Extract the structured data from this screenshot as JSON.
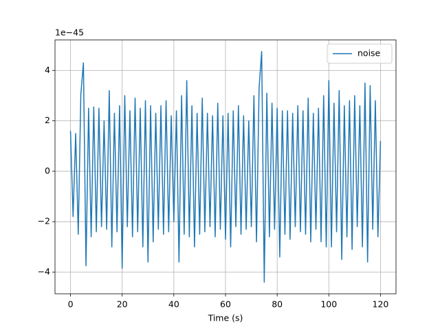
{
  "chart_data": {
    "type": "line",
    "xlabel": "Time (s)",
    "offset_text": "1e−45",
    "x": [
      0,
      1,
      2,
      3,
      4,
      5,
      6,
      7,
      8,
      9,
      10,
      11,
      12,
      13,
      14,
      15,
      16,
      17,
      18,
      19,
      20,
      21,
      22,
      23,
      24,
      25,
      26,
      27,
      28,
      29,
      30,
      31,
      32,
      33,
      34,
      35,
      36,
      37,
      38,
      39,
      40,
      41,
      42,
      43,
      44,
      45,
      46,
      47,
      48,
      49,
      50,
      51,
      52,
      53,
      54,
      55,
      56,
      57,
      58,
      59,
      60,
      61,
      62,
      63,
      64,
      65,
      66,
      67,
      68,
      69,
      70,
      71,
      72,
      73,
      74,
      75,
      76,
      77,
      78,
      79,
      80,
      81,
      82,
      83,
      84,
      85,
      86,
      87,
      88,
      89,
      90,
      91,
      92,
      93,
      94,
      95,
      96,
      97,
      98,
      99,
      100,
      101,
      102,
      103,
      104,
      105,
      106,
      107,
      108,
      109,
      110,
      111,
      112,
      113,
      114,
      115,
      116,
      117,
      118,
      119,
      120
    ],
    "series": [
      {
        "name": "noise",
        "color": "#1f77b4",
        "values": [
          1.6,
          -1.8,
          1.5,
          -2.5,
          3.05,
          4.3,
          -3.75,
          2.5,
          -2.6,
          2.55,
          -2.4,
          2.5,
          -2.2,
          2.0,
          -2.3,
          3.2,
          -3.0,
          2.3,
          -2.4,
          2.6,
          -3.85,
          3.0,
          -2.2,
          2.4,
          -2.6,
          2.9,
          -2.4,
          2.5,
          -3.0,
          2.8,
          -3.6,
          2.6,
          -2.8,
          2.3,
          -2.3,
          2.6,
          -2.5,
          2.8,
          -2.4,
          2.2,
          -2.0,
          2.4,
          -3.6,
          3.0,
          -2.5,
          3.6,
          -2.6,
          2.6,
          -3.0,
          2.3,
          -2.5,
          2.9,
          -2.4,
          2.3,
          -2.2,
          2.2,
          -2.6,
          2.7,
          -2.3,
          2.2,
          -2.7,
          2.3,
          -3.0,
          2.4,
          -2.2,
          2.6,
          -2.5,
          2.2,
          -2.3,
          2.0,
          -2.2,
          3.0,
          -2.8,
          3.3,
          4.75,
          -4.4,
          3.1,
          -2.6,
          2.7,
          -2.3,
          2.5,
          -3.4,
          2.4,
          -2.5,
          2.4,
          -2.7,
          2.3,
          -2.2,
          2.6,
          -2.4,
          2.4,
          -2.5,
          2.9,
          -2.8,
          2.3,
          -2.3,
          2.5,
          -2.8,
          3.0,
          -3.0,
          3.6,
          -3.0,
          2.7,
          -2.4,
          3.2,
          -3.5,
          2.6,
          -2.6,
          2.8,
          -3.1,
          3.0,
          -2.2,
          2.6,
          -3.0,
          3.5,
          -3.6,
          3.4,
          -2.3,
          2.8,
          -2.6,
          1.2
        ]
      }
    ],
    "xlim": [
      -6,
      126
    ],
    "xticks": [
      0,
      20,
      40,
      60,
      80,
      100,
      120
    ],
    "ylim": [
      -4.86,
      5.21
    ],
    "yticks": [
      {
        "value": -4,
        "label": "−4"
      },
      {
        "value": -2,
        "label": "−2"
      },
      0,
      2,
      4
    ],
    "grid": true,
    "legend": "upper right"
  }
}
